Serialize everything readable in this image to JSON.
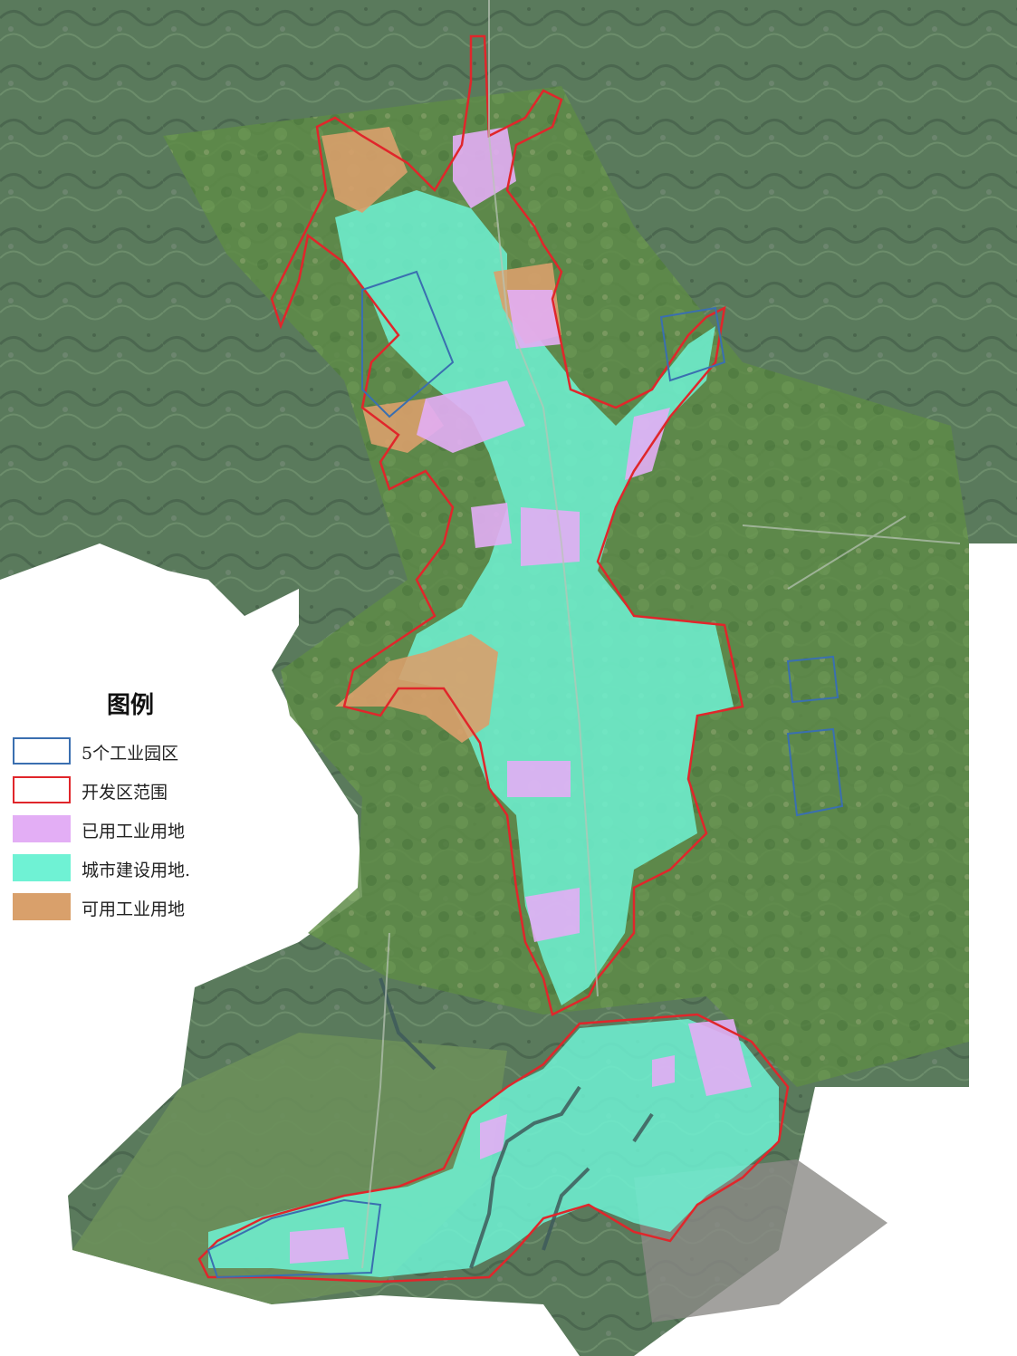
{
  "legend": {
    "title": "图例",
    "items": [
      {
        "label": "5个工业园区",
        "style": "outline",
        "color": "#3a6fb0"
      },
      {
        "label": "开发区范围",
        "style": "outline",
        "color": "#e0262b"
      },
      {
        "label": "已用工业用地",
        "style": "fill",
        "color": "#e3aef5"
      },
      {
        "label": "城市建设用地.",
        "style": "fill",
        "color": "#6ff2d4"
      },
      {
        "label": "可用工业用地",
        "style": "fill",
        "color": "#d9a06b"
      }
    ]
  },
  "colors": {
    "terrain_dark": "#4f6a55",
    "terrain_green": "#5f8a4a",
    "terrain_light": "#8aa98a",
    "boundary_red": "#e0262b",
    "park_blue": "#3a6fb0",
    "used_industrial": "#e3aef5",
    "urban_construction": "#6ff2d4",
    "available_industrial": "#d9a06b",
    "river": "#3e5a5a"
  }
}
